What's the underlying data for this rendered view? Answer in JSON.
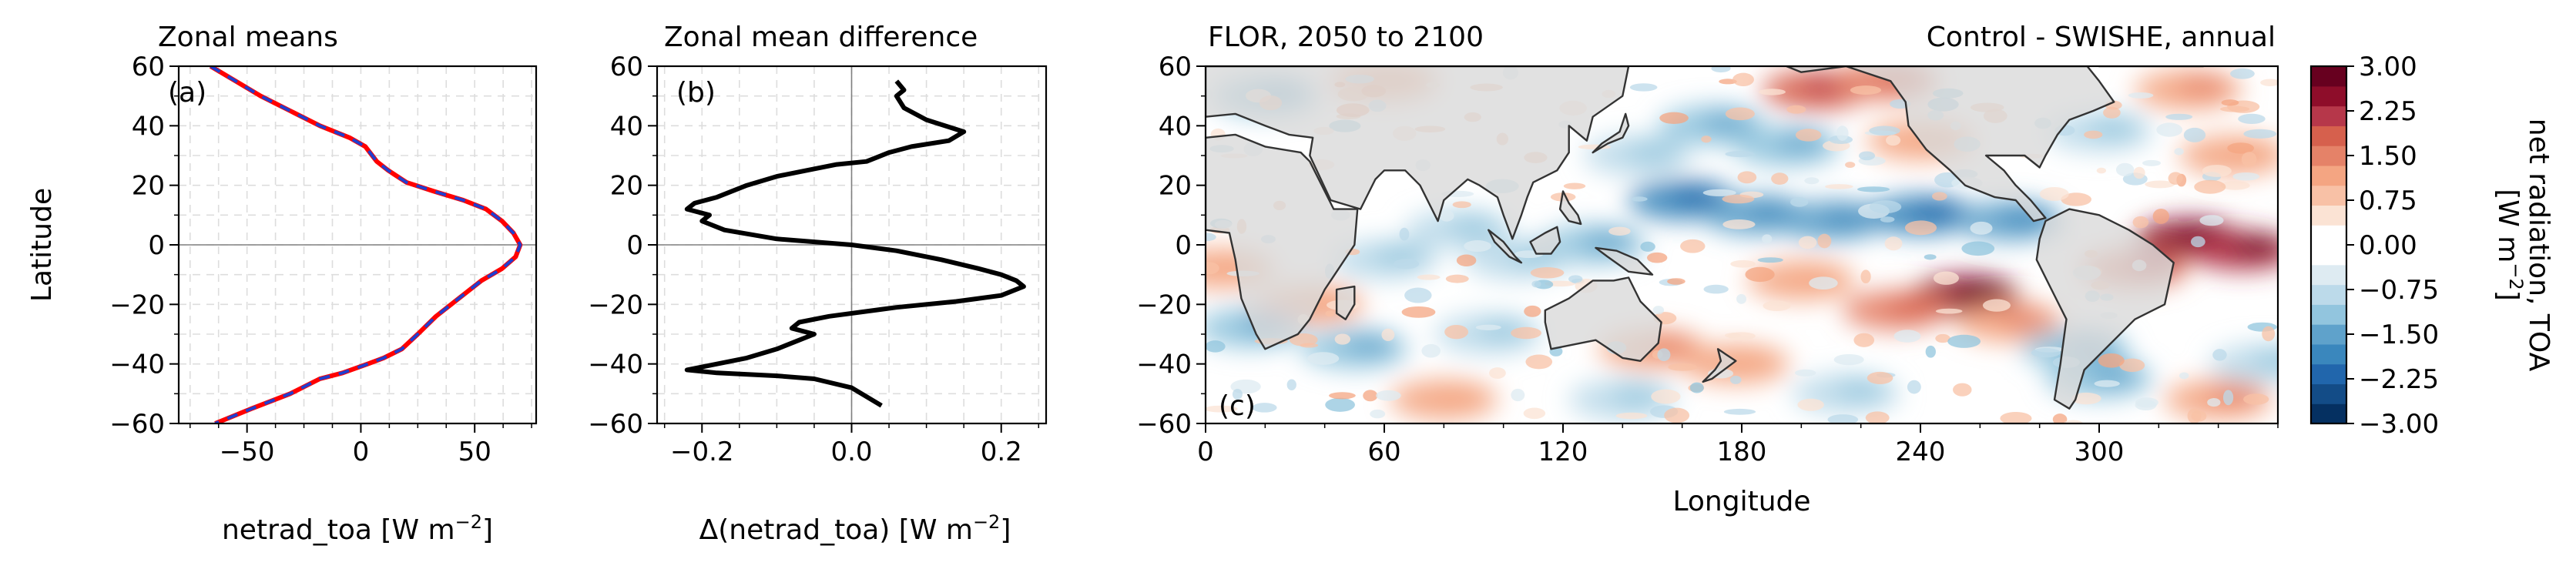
{
  "chart_data": [
    {
      "type": "line",
      "title": "Zonal means",
      "panel_label": "(a)",
      "xlabel": "netrad_toa [W m",
      "xlabel_sup": "−2",
      "xlabel_end": "]",
      "ylabel": "Latitude",
      "xlim": [
        -80,
        77
      ],
      "ylim": [
        -60,
        60
      ],
      "xticks": [
        -50,
        0,
        50
      ],
      "xtick_labels": [
        "−50",
        "0",
        "50"
      ],
      "yticks": [
        -60,
        -40,
        -20,
        0,
        20,
        40,
        60
      ],
      "ytick_labels": [
        "−60",
        "−40",
        "−20",
        "0",
        "20",
        "40",
        "60"
      ],
      "grid": true,
      "series": [
        {
          "color": "#ff0000",
          "points": [
            [
              -66,
              60
            ],
            [
              -55,
              55
            ],
            [
              -44,
              50
            ],
            [
              -31,
              45
            ],
            [
              -18,
              40
            ],
            [
              -5,
              36
            ],
            [
              2,
              33
            ],
            [
              5,
              30
            ],
            [
              7,
              28
            ],
            [
              12,
              25
            ],
            [
              20,
              21
            ],
            [
              32,
              18
            ],
            [
              45,
              15
            ],
            [
              55,
              12
            ],
            [
              62,
              8
            ],
            [
              67,
              4
            ],
            [
              70,
              0
            ],
            [
              68,
              -4
            ],
            [
              62,
              -8
            ],
            [
              53,
              -12
            ],
            [
              43,
              -18
            ],
            [
              33,
              -24
            ],
            [
              25,
              -30
            ],
            [
              18,
              -35
            ],
            [
              10,
              -38
            ],
            [
              3,
              -40
            ],
            [
              -8,
              -43
            ],
            [
              -18,
              -45
            ],
            [
              -31,
              -50
            ],
            [
              -48,
              -55
            ],
            [
              -64,
              -60
            ]
          ]
        },
        {
          "color": "#1f3fd0",
          "dashed": true,
          "points": [
            [
              -66,
              60
            ],
            [
              -55,
              55
            ],
            [
              -44,
              50
            ],
            [
              -31,
              45
            ],
            [
              -18,
              40
            ],
            [
              -5,
              36
            ],
            [
              2,
              33
            ],
            [
              5,
              30
            ],
            [
              7,
              28
            ],
            [
              12,
              25
            ],
            [
              20,
              21
            ],
            [
              32,
              18
            ],
            [
              45,
              15
            ],
            [
              55,
              12
            ],
            [
              62,
              8
            ],
            [
              67,
              4
            ],
            [
              70,
              0
            ],
            [
              68,
              -4
            ],
            [
              62,
              -8
            ],
            [
              53,
              -12
            ],
            [
              43,
              -18
            ],
            [
              33,
              -24
            ],
            [
              25,
              -30
            ],
            [
              18,
              -35
            ],
            [
              10,
              -38
            ],
            [
              3,
              -40
            ],
            [
              -8,
              -43
            ],
            [
              -18,
              -45
            ],
            [
              -31,
              -50
            ],
            [
              -48,
              -55
            ],
            [
              -64,
              -60
            ]
          ]
        }
      ]
    },
    {
      "type": "line",
      "title": "Zonal mean difference",
      "panel_label": "(b)",
      "xlabel": "Δ(netrad_toa) [W m",
      "xlabel_sup": "−2",
      "xlabel_end": "]",
      "xlim": [
        -0.26,
        0.26
      ],
      "ylim": [
        -60,
        60
      ],
      "xticks": [
        -0.2,
        0,
        0.2
      ],
      "xtick_labels": [
        "−0.2",
        "0.0",
        "0.2"
      ],
      "yticks": [
        -60,
        -40,
        -20,
        0,
        20,
        40,
        60
      ],
      "ytick_labels": [
        "−60",
        "−40",
        "−20",
        "0",
        "20",
        "40",
        "60"
      ],
      "grid": true,
      "series": [
        {
          "color": "#000000",
          "points": [
            [
              0.06,
              55
            ],
            [
              0.07,
              52
            ],
            [
              0.06,
              50
            ],
            [
              0.07,
              46
            ],
            [
              0.1,
              42
            ],
            [
              0.15,
              38
            ],
            [
              0.13,
              35
            ],
            [
              0.08,
              33
            ],
            [
              0.05,
              31
            ],
            [
              0.02,
              28
            ],
            [
              -0.02,
              27
            ],
            [
              -0.06,
              25
            ],
            [
              -0.1,
              23
            ],
            [
              -0.14,
              20
            ],
            [
              -0.18,
              16
            ],
            [
              -0.21,
              14
            ],
            [
              -0.22,
              12
            ],
            [
              -0.19,
              10
            ],
            [
              -0.2,
              8
            ],
            [
              -0.17,
              5
            ],
            [
              -0.1,
              2
            ],
            [
              0.0,
              0
            ],
            [
              0.06,
              -2
            ],
            [
              0.12,
              -5
            ],
            [
              0.17,
              -8
            ],
            [
              0.2,
              -10
            ],
            [
              0.22,
              -12
            ],
            [
              0.23,
              -14
            ],
            [
              0.2,
              -17
            ],
            [
              0.14,
              -19
            ],
            [
              0.06,
              -21
            ],
            [
              -0.03,
              -24
            ],
            [
              -0.07,
              -26
            ],
            [
              -0.08,
              -28
            ],
            [
              -0.05,
              -30
            ],
            [
              -0.07,
              -32
            ],
            [
              -0.1,
              -35
            ],
            [
              -0.14,
              -38
            ],
            [
              -0.18,
              -40
            ],
            [
              -0.22,
              -42
            ],
            [
              -0.18,
              -43
            ],
            [
              -0.1,
              -44
            ],
            [
              -0.05,
              -45
            ],
            [
              0.0,
              -48
            ],
            [
              0.02,
              -51
            ],
            [
              0.04,
              -54
            ]
          ]
        }
      ]
    },
    {
      "type": "heatmap",
      "title_left": "FLOR, 2050 to 2100",
      "title_right": "Control - SWISHE, annual",
      "panel_label": "(c)",
      "xlabel": "Longitude",
      "xlim": [
        0,
        360
      ],
      "ylim": [
        -60,
        60
      ],
      "xticks": [
        0,
        60,
        120,
        180,
        240,
        300
      ],
      "xtick_labels": [
        "0",
        "60",
        "120",
        "180",
        "240",
        "300"
      ],
      "yticks": [
        -60,
        -40,
        -20,
        0,
        20,
        40,
        60
      ],
      "ytick_labels": [
        "−60",
        "−40",
        "−20",
        "0",
        "20",
        "40",
        "60"
      ],
      "land_color": "#d9d9d9",
      "colorbar": {
        "label": "net radiation, TOA",
        "label2_prefix": "[W m",
        "label2_sup": "−2",
        "label2_suffix": "]",
        "min": -3.0,
        "max": 3.0,
        "tick_values": [
          3,
          2.25,
          1.5,
          0.75,
          0,
          -0.75,
          -1.5,
          -2.25,
          -3
        ],
        "tick_labels": [
          "3.00",
          "2.25",
          "1.50",
          "0.75",
          "0.00",
          "−0.75",
          "−1.50",
          "−2.25",
          "−3.00"
        ],
        "levels": [
          "#053061",
          "#134c87",
          "#2166ac",
          "#3a87bd",
          "#5fa2cb",
          "#92c5de",
          "#bcdaea",
          "#deebf2",
          "#ffffff",
          "#ffffff",
          "#fbe3d4",
          "#f8c1a6",
          "#f4a582",
          "#e58268",
          "#d6604d",
          "#b6374a",
          "#8e0d2a",
          "#67001f"
        ]
      },
      "anomalies": [
        {
          "lon": 205,
          "lat": 52,
          "v": 1.8
        },
        {
          "lon": 228,
          "lat": 55,
          "v": 1.4
        },
        {
          "lon": 20,
          "lat": 50,
          "v": -1.2
        },
        {
          "lon": 60,
          "lat": 55,
          "v": 1.0
        },
        {
          "lon": 170,
          "lat": 40,
          "v": -1.3
        },
        {
          "lon": 195,
          "lat": 33,
          "v": -1.2
        },
        {
          "lon": 145,
          "lat": 30,
          "v": -1.0
        },
        {
          "lon": 240,
          "lat": 35,
          "v": 1.0
        },
        {
          "lon": 300,
          "lat": 38,
          "v": -1.0
        },
        {
          "lon": 330,
          "lat": 52,
          "v": 1.2
        },
        {
          "lon": 345,
          "lat": 30,
          "v": 1.0
        },
        {
          "lon": 160,
          "lat": 15,
          "v": -1.8
        },
        {
          "lon": 185,
          "lat": 10,
          "v": -1.6
        },
        {
          "lon": 210,
          "lat": 8,
          "v": -1.4
        },
        {
          "lon": 240,
          "lat": 10,
          "v": -1.8
        },
        {
          "lon": 270,
          "lat": 8,
          "v": -1.5
        },
        {
          "lon": 330,
          "lat": 2,
          "v": 2.6
        },
        {
          "lon": 348,
          "lat": -2,
          "v": 2.2
        },
        {
          "lon": 312,
          "lat": -8,
          "v": 1.6
        },
        {
          "lon": 130,
          "lat": 0,
          "v": -1.2
        },
        {
          "lon": 105,
          "lat": -5,
          "v": -0.9
        },
        {
          "lon": 60,
          "lat": -5,
          "v": -0.9
        },
        {
          "lon": 85,
          "lat": 5,
          "v": -1.0
        },
        {
          "lon": 200,
          "lat": -12,
          "v": 1.0
        },
        {
          "lon": 255,
          "lat": -17,
          "v": 2.6
        },
        {
          "lon": 232,
          "lat": -22,
          "v": 1.4
        },
        {
          "lon": 270,
          "lat": -26,
          "v": 1.3
        },
        {
          "lon": 35,
          "lat": -20,
          "v": 1.0
        },
        {
          "lon": 15,
          "lat": -28,
          "v": -1.1
        },
        {
          "lon": 50,
          "lat": -35,
          "v": -1.3
        },
        {
          "lon": 95,
          "lat": -30,
          "v": -1.0
        },
        {
          "lon": 150,
          "lat": -35,
          "v": 1.1
        },
        {
          "lon": 178,
          "lat": -40,
          "v": 1.0
        },
        {
          "lon": 292,
          "lat": -35,
          "v": -1.3
        },
        {
          "lon": 300,
          "lat": -45,
          "v": -1.2
        },
        {
          "lon": 80,
          "lat": -52,
          "v": 1.0
        },
        {
          "lon": 140,
          "lat": -52,
          "v": -0.9
        },
        {
          "lon": 215,
          "lat": -50,
          "v": -1.0
        },
        {
          "lon": 340,
          "lat": -52,
          "v": 1.1
        },
        {
          "lon": 5,
          "lat": -8,
          "v": 1.0
        },
        {
          "lon": 355,
          "lat": -40,
          "v": -1.0
        }
      ]
    }
  ]
}
